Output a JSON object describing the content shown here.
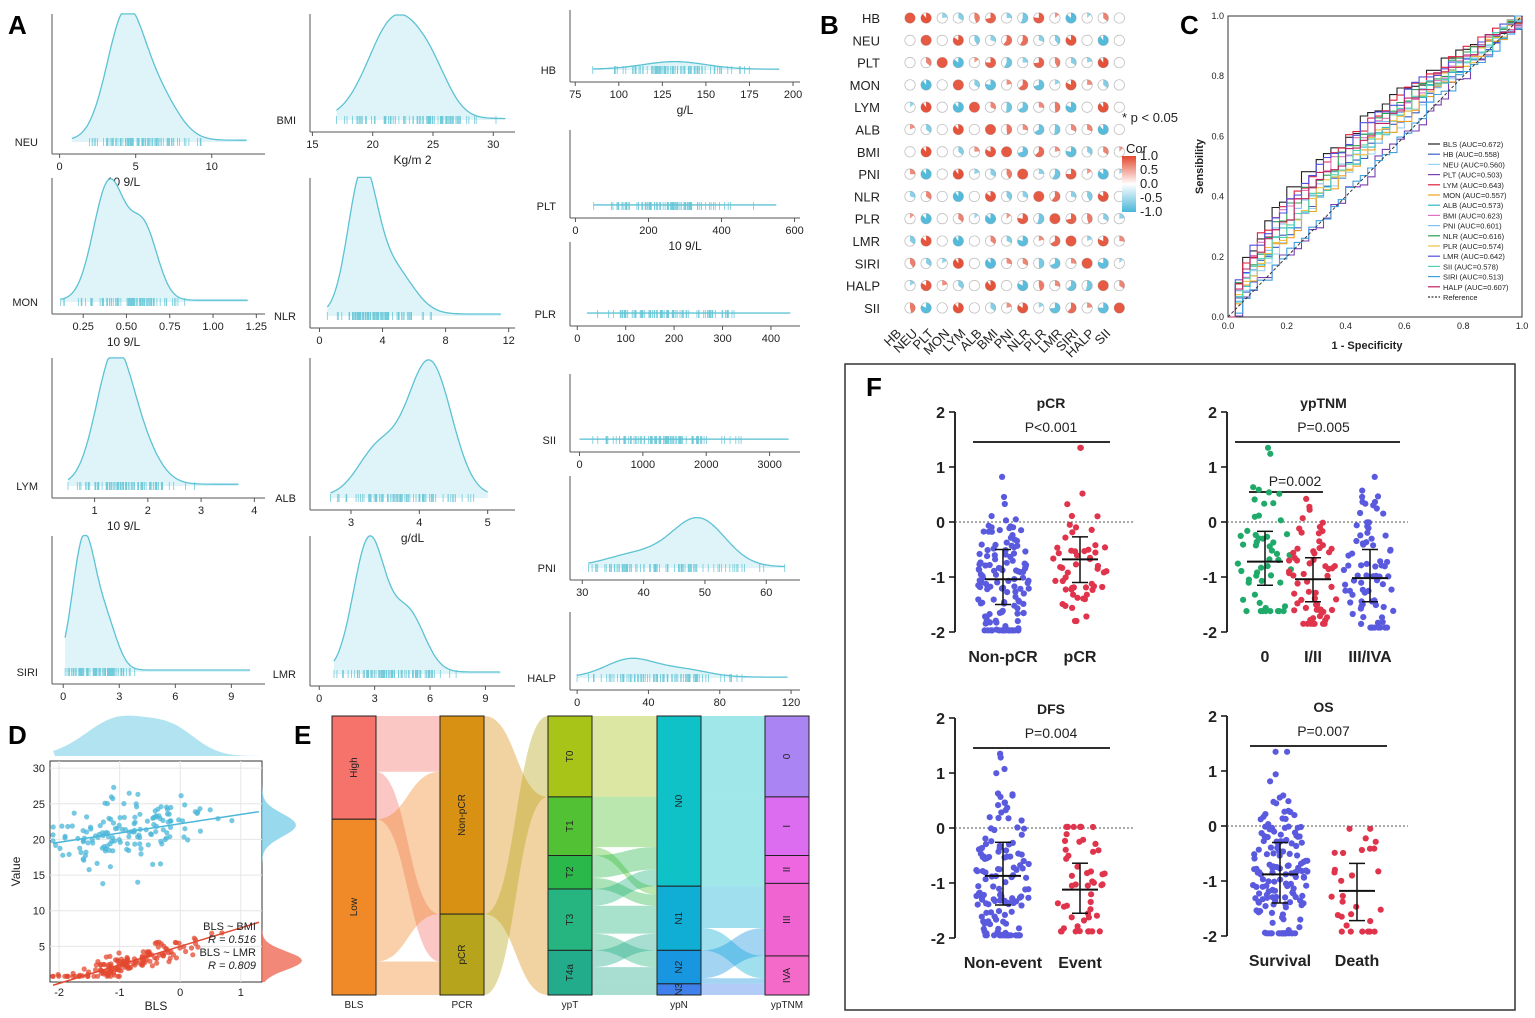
{
  "panel_labels": [
    "A",
    "B",
    "C",
    "D",
    "E",
    "F"
  ],
  "colors": {
    "density_fill": "#dff4f8",
    "density_line": "#5cc2d4",
    "pos": "#e3482f",
    "neg": "#4ab6d8",
    "dot_blue": "#5a5adf",
    "dot_red": "#e0344c",
    "dot_green": "#1faa6a"
  },
  "chart_data": {
    "density_panels": [
      {
        "id": "neu",
        "label": "NEU",
        "xlabel": "10 9/L",
        "ticks": [
          "0",
          "5",
          "10"
        ],
        "tickvals": [
          0,
          5,
          10
        ],
        "xlim": [
          -0.5,
          13.5
        ],
        "range": [
          0.8,
          12.3
        ],
        "peaks": [
          [
            4.3,
            1.0,
            1.2
          ],
          [
            6.5,
            0.35,
            1.3
          ]
        ]
      },
      {
        "id": "bmi",
        "label": "BMI",
        "xlabel": "Kg/m 2",
        "ticks": [
          "15",
          "20",
          "25",
          "30"
        ],
        "tickvals": [
          15,
          20,
          25,
          30
        ],
        "xlim": [
          14.8,
          31.8
        ],
        "range": [
          17,
          31
        ],
        "peaks": [
          [
            21.9,
            1.0,
            2.2
          ],
          [
            25,
            0.3,
            1.5
          ]
        ]
      },
      {
        "id": "hb",
        "label": "HB",
        "xlabel": "g/L",
        "ticks": [
          "75",
          "100",
          "125",
          "150",
          "175",
          "200"
        ],
        "tickvals": [
          75,
          100,
          125,
          150,
          175,
          200
        ],
        "xlim": [
          72,
          204
        ],
        "range": [
          85,
          192
        ],
        "peaks": [
          [
            132,
            0.14,
            18
          ]
        ]
      },
      {
        "id": "mon",
        "label": "MON",
        "xlabel": "10 9/L",
        "ticks": [
          "0.25",
          "0.50",
          "0.75",
          "1.00",
          "1.25"
        ],
        "tickvals": [
          0.25,
          0.5,
          0.75,
          1.0,
          1.25
        ],
        "xlim": [
          0.07,
          1.3
        ],
        "range": [
          0.12,
          1.2
        ],
        "peaks": [
          [
            0.4,
            1.0,
            0.09
          ],
          [
            0.6,
            0.6,
            0.08
          ]
        ]
      },
      {
        "id": "nlr",
        "label": "NLR",
        "xlabel": "",
        "ticks": [
          "0",
          "4",
          "8",
          "12"
        ],
        "tickvals": [
          0,
          4,
          8,
          12
        ],
        "xlim": [
          -0.6,
          12.4
        ],
        "range": [
          0.5,
          11.5
        ],
        "peaks": [
          [
            2.7,
            1.0,
            0.9
          ],
          [
            4.6,
            0.35,
            1.3
          ]
        ]
      },
      {
        "id": "plt",
        "label": "PLT",
        "xlabel": "10 9/L",
        "ticks": [
          "0",
          "200",
          "400",
          "600"
        ],
        "tickvals": [
          0,
          200,
          400,
          600
        ],
        "xlim": [
          -15,
          615
        ],
        "range": [
          50,
          550
        ],
        "peaks": []
      },
      {
        "id": "lym",
        "label": "LYM",
        "xlabel": "10 9/L",
        "ticks": [
          "1",
          "2",
          "3",
          "4"
        ],
        "tickvals": [
          1,
          2,
          3,
          4
        ],
        "xlim": [
          0.2,
          4.2
        ],
        "range": [
          0.5,
          3.7
        ],
        "peaks": [
          [
            1.35,
            1.0,
            0.33
          ],
          [
            1.85,
            0.3,
            0.35
          ]
        ]
      },
      {
        "id": "alb",
        "label": "ALB",
        "xlabel": "g/dL",
        "ticks": [
          "3",
          "4",
          "5"
        ],
        "tickvals": [
          3,
          4,
          5
        ],
        "xlim": [
          2.4,
          5.4
        ],
        "range": [
          2.7,
          5.0
        ],
        "peaks": [
          [
            4.15,
            1.0,
            0.32
          ],
          [
            3.4,
            0.35,
            0.3
          ]
        ]
      },
      {
        "id": "plr",
        "label": "PLR",
        "xlabel": "",
        "ticks": [
          "0",
          "100",
          "200",
          "300",
          "400"
        ],
        "tickvals": [
          0,
          100,
          200,
          300,
          400
        ],
        "xlim": [
          -15,
          460
        ],
        "range": [
          20,
          440
        ],
        "peaks": []
      },
      {
        "id": "siri",
        "label": "SIRI",
        "xlabel": "",
        "ticks": [
          "0",
          "3",
          "6",
          "9"
        ],
        "tickvals": [
          0,
          3,
          6,
          9
        ],
        "xlim": [
          -0.6,
          10.8
        ],
        "range": [
          0.1,
          10
        ],
        "peaks": [
          [
            1.1,
            1.0,
            0.6
          ],
          [
            2.3,
            0.35,
            0.6
          ]
        ]
      },
      {
        "id": "lmr",
        "label": "LMR",
        "xlabel": "",
        "ticks": [
          "0",
          "3",
          "6",
          "9"
        ],
        "tickvals": [
          0,
          3,
          6,
          9
        ],
        "xlim": [
          -0.5,
          10.6
        ],
        "range": [
          0.8,
          9.8
        ],
        "peaks": [
          [
            2.7,
            1.0,
            0.85
          ],
          [
            4.8,
            0.45,
            0.9
          ]
        ]
      },
      {
        "id": "sii",
        "label": "SII",
        "xlabel": "",
        "ticks": [
          "0",
          "1000",
          "2000",
          "3000"
        ],
        "tickvals": [
          0,
          1000,
          2000,
          3000
        ],
        "xlim": [
          -150,
          3480
        ],
        "range": [
          0,
          3300
        ],
        "peaks": []
      },
      {
        "id": "pni",
        "label": "PNI",
        "xlabel": "",
        "ticks": [
          "30",
          "40",
          "50",
          "60"
        ],
        "tickvals": [
          30,
          40,
          50,
          60
        ],
        "xlim": [
          28,
          65.5
        ],
        "range": [
          31,
          63
        ],
        "peaks": [
          [
            49,
            0.55,
            4.3
          ],
          [
            39,
            0.15,
            5
          ]
        ]
      },
      {
        "id": "halp",
        "label": "HALP",
        "xlabel": "",
        "ticks": [
          "0",
          "40",
          "80",
          "120"
        ],
        "tickvals": [
          0,
          40,
          80,
          120
        ],
        "xlim": [
          -4,
          125
        ],
        "range": [
          0,
          118
        ],
        "peaks": [
          [
            30,
            0.3,
            14
          ],
          [
            60,
            0.12,
            14
          ]
        ]
      }
    ],
    "correlation": {
      "type": "heatmap",
      "variables": [
        "HB",
        "NEU",
        "PLT",
        "MON",
        "LYM",
        "ALB",
        "BMI",
        "PNI",
        "NLR",
        "PLR",
        "LMR",
        "SIRI",
        "HALP",
        "SII"
      ],
      "legend_title": "Cor",
      "legend_ticks": [
        "1.0",
        "0.5",
        "0.0",
        "-0.5",
        "-1.0"
      ],
      "annotation": "* p < 0.05"
    },
    "roc": {
      "type": "line",
      "xlabel": "1 - Specificity",
      "ylabel": "Sensibility",
      "ticks": [
        "0.0",
        "0.2",
        "0.4",
        "0.6",
        "0.8",
        "1.0"
      ],
      "series": [
        {
          "name": "BLS (AUC=0.672)",
          "auc": 0.672,
          "color": "#222222"
        },
        {
          "name": "HB (AUC=0.558)",
          "auc": 0.558,
          "color": "#3a5fc8"
        },
        {
          "name": "NEU (AUC=0.560)",
          "auc": 0.56,
          "color": "#9ad0f0"
        },
        {
          "name": "PLT (AUC=0.503)",
          "auc": 0.503,
          "color": "#7a3fb0"
        },
        {
          "name": "LYM (AUC=0.643)",
          "auc": 0.643,
          "color": "#e01e3c"
        },
        {
          "name": "MON (AUC=0.557)",
          "auc": 0.557,
          "color": "#f0a020"
        },
        {
          "name": "ALB (AUC=0.573)",
          "auc": 0.573,
          "color": "#30b8c8"
        },
        {
          "name": "BMI (AUC=0.623)",
          "auc": 0.623,
          "color": "#e070c0"
        },
        {
          "name": "PNI (AUC=0.601)",
          "auc": 0.601,
          "color": "#80c0f0"
        },
        {
          "name": "NLR (AUC=0.616)",
          "auc": 0.616,
          "color": "#2aa050"
        },
        {
          "name": "PLR (AUC=0.574)",
          "auc": 0.574,
          "color": "#f0c040"
        },
        {
          "name": "LMR (AUC=0.642)",
          "auc": 0.642,
          "color": "#5050e0"
        },
        {
          "name": "SII (AUC=0.578)",
          "auc": 0.578,
          "color": "#50d0b0"
        },
        {
          "name": "SIRI (AUC=0.513)",
          "auc": 0.513,
          "color": "#40a0e0"
        },
        {
          "name": "HALP (AUC=0.607)",
          "auc": 0.607,
          "color": "#c02060"
        },
        {
          "name": "Reference",
          "auc": 0.5,
          "color": "#333333"
        }
      ]
    },
    "scatter": {
      "type": "scatter",
      "xlabel": "BLS",
      "ylabel": "Value",
      "xticks": [
        "-2",
        "-1",
        "0",
        "1"
      ],
      "xtickvals": [
        -2,
        -1,
        0,
        1
      ],
      "yticks": [
        "5",
        "10",
        "15",
        "20",
        "25",
        "30"
      ],
      "ytickvals": [
        5,
        10,
        15,
        20,
        25,
        30
      ],
      "xlim": [
        -2.15,
        1.35
      ],
      "ylim": [
        0,
        31
      ],
      "series": [
        {
          "name": "BLS ~ BMI",
          "r": "R = 0.516",
          "slope": 1.3,
          "intercept": 22.2,
          "color": "#4ab6d8"
        },
        {
          "name": "BLS ~ LMR",
          "r": "R = 0.809",
          "slope": 2.6,
          "intercept": 5.0,
          "color": "#e3482f"
        }
      ]
    },
    "sankey": {
      "type": "sankey",
      "axes": [
        "BLS",
        "PCR",
        "ypT",
        "ypN",
        "ypTNM"
      ],
      "nodes": {
        "BLS": [
          {
            "label": "High",
            "share": 0.37,
            "color": "#f5736b"
          },
          {
            "label": "Low",
            "share": 0.63,
            "color": "#f08a28"
          }
        ],
        "PCR": [
          {
            "label": "Non-pCR",
            "share": 0.71,
            "color": "#d99114"
          },
          {
            "label": "pCR",
            "share": 0.29,
            "color": "#b6a41c"
          }
        ],
        "ypT": [
          {
            "label": "T0",
            "share": 0.29,
            "color": "#a8c418"
          },
          {
            "label": "T1",
            "share": 0.21,
            "color": "#52c234"
          },
          {
            "label": "T2",
            "share": 0.12,
            "color": "#2ab84a"
          },
          {
            "label": "T3",
            "share": 0.22,
            "color": "#26b480"
          },
          {
            "label": "T4a",
            "share": 0.16,
            "color": "#22ac8c"
          }
        ],
        "ypN": [
          {
            "label": "N0",
            "share": 0.61,
            "color": "#0ec2c8"
          },
          {
            "label": "N1",
            "share": 0.23,
            "color": "#10aed4"
          },
          {
            "label": "N2",
            "share": 0.12,
            "color": "#1896e0"
          },
          {
            "label": "N3",
            "share": 0.04,
            "color": "#4080ea"
          }
        ],
        "ypTNM": [
          {
            "label": "0",
            "share": 0.29,
            "color": "#aa84f2"
          },
          {
            "label": "I",
            "share": 0.21,
            "color": "#dc6cf0"
          },
          {
            "label": "II",
            "share": 0.1,
            "color": "#ee66e0"
          },
          {
            "label": "III",
            "share": 0.26,
            "color": "#f064d2"
          },
          {
            "label": "IVA",
            "share": 0.14,
            "color": "#f46ac8"
          }
        ]
      }
    },
    "dotplots": [
      {
        "id": "pcr",
        "title": "pCR",
        "pval": "P<0.001",
        "groups": [
          {
            "label": "Non-pCR",
            "n": 130,
            "median": -1.04,
            "q1": -1.5,
            "q3": -0.5,
            "min": -1.97,
            "max": 0.82,
            "color": "#5a5adf"
          },
          {
            "label": "pCR",
            "n": 55,
            "median": -0.68,
            "q1": -1.1,
            "q3": -0.27,
            "min": -1.8,
            "max": 1.35,
            "color": "#e0344c"
          }
        ],
        "bracket": [
          0,
          1
        ]
      },
      {
        "id": "yptnm",
        "title": "ypTNM",
        "pval": "P=0.005",
        "sub_pval": "P=0.002",
        "groups": [
          {
            "label": "0",
            "n": 55,
            "median": -0.72,
            "q1": -1.15,
            "q3": -0.17,
            "min": -1.62,
            "max": 1.35,
            "color": "#1faa6a"
          },
          {
            "label": "I/II",
            "n": 65,
            "median": -1.04,
            "q1": -1.45,
            "q3": -0.65,
            "min": -1.85,
            "max": 0.42,
            "color": "#e0344c"
          },
          {
            "label": "III/IVA",
            "n": 80,
            "median": -1.02,
            "q1": -1.45,
            "q3": -0.5,
            "min": -1.92,
            "max": 0.82,
            "color": "#5a5adf"
          }
        ],
        "bracket": [
          0,
          2
        ]
      },
      {
        "id": "dfs",
        "title": "DFS",
        "pval": "P=0.004",
        "groups": [
          {
            "label": "Non-event",
            "n": 140,
            "median": -0.87,
            "q1": -1.4,
            "q3": -0.26,
            "min": -1.95,
            "max": 1.35,
            "color": "#5a5adf"
          },
          {
            "label": "Event",
            "n": 50,
            "median": -1.12,
            "q1": -1.55,
            "q3": -0.64,
            "min": -1.88,
            "max": 0.02,
            "color": "#e0344c"
          }
        ],
        "bracket": [
          0,
          1
        ]
      },
      {
        "id": "os",
        "title": "OS",
        "pval": "P=0.007",
        "groups": [
          {
            "label": "Survival",
            "n": 160,
            "median": -0.88,
            "q1": -1.4,
            "q3": -0.3,
            "min": -1.95,
            "max": 1.35,
            "color": "#5a5adf"
          },
          {
            "label": "Death",
            "n": 30,
            "median": -1.18,
            "q1": -1.72,
            "q3": -0.68,
            "min": -1.92,
            "max": -0.05,
            "color": "#e0344c"
          }
        ],
        "bracket": [
          0,
          1
        ]
      }
    ],
    "dotplot_yticks": [
      "2",
      "1",
      "0",
      "-1",
      "-2"
    ]
  }
}
